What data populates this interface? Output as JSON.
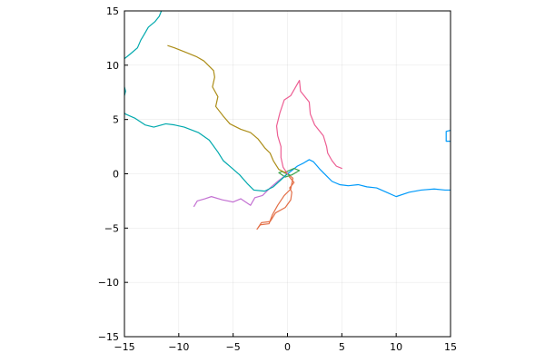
{
  "chart_data": {
    "type": "line",
    "title": "",
    "xlabel": "",
    "ylabel": "",
    "xlim": [
      -15,
      15
    ],
    "ylim": [
      -15,
      15
    ],
    "xticks": [
      -15,
      -10,
      -5,
      0,
      5,
      10,
      15
    ],
    "yticks": [
      -15,
      -10,
      -5,
      0,
      5,
      10,
      15
    ],
    "xtick_labels": [
      "−15",
      "−10",
      "−5",
      "0",
      "5",
      "10",
      "15"
    ],
    "ytick_labels": [
      "−15",
      "−10",
      "−5",
      "0",
      "5",
      "10",
      "15"
    ],
    "grid": true,
    "legend": "none",
    "aspect": "equal",
    "series": [
      {
        "color": "#009AFA",
        "x": [
          0,
          0.4,
          0.9,
          1.5,
          2.0,
          2.4,
          3.0,
          3.6,
          4.1,
          4.8,
          5.6,
          6.5,
          7.3,
          8.2,
          9.1,
          10.0,
          11.2,
          12.3,
          13.5,
          14.5,
          15.0
        ],
        "y": [
          0,
          0.3,
          0.7,
          1.0,
          1.3,
          1.1,
          0.4,
          -0.2,
          -0.7,
          -1.0,
          -1.1,
          -1.0,
          -1.2,
          -1.3,
          -1.7,
          -2.1,
          -1.7,
          -1.5,
          -1.4,
          -1.5,
          -1.5
        ]
      },
      {
        "color": "#009AFA",
        "x": [
          15.0,
          14.6,
          14.6,
          15.0
        ],
        "y": [
          4.0,
          3.9,
          3.0,
          3.0
        ]
      },
      {
        "color": "#E36F47",
        "x": [
          0,
          0.5,
          0.4,
          0.3,
          -0.3,
          -0.9,
          -1.4,
          -1.7,
          -2.5,
          -2.8,
          -2.4,
          -1.6,
          -1.1,
          -0.2,
          0.3,
          0.4,
          0.2,
          0.6,
          0.1
        ],
        "y": [
          0,
          -0.4,
          -0.9,
          -1.4,
          -2.0,
          -2.9,
          -3.8,
          -4.6,
          -4.7,
          -5.1,
          -4.5,
          -4.4,
          -3.6,
          -3.1,
          -2.4,
          -1.7,
          -1.3,
          -0.8,
          -0.2
        ]
      },
      {
        "color": "#3EA44E",
        "x": [
          0,
          -0.5,
          -0.8,
          -0.2,
          0.4,
          1.1,
          0.6,
          -0.3,
          0.2
        ],
        "y": [
          0,
          0.2,
          0.1,
          -0.3,
          -0.1,
          0.3,
          0.5,
          0.1,
          -0.1
        ]
      },
      {
        "color": "#C371D2",
        "x": [
          0,
          -0.9,
          -1.6,
          -2.3,
          -3.0,
          -3.4,
          -4.3,
          -5.0,
          -6.0,
          -7.0,
          -7.6,
          -8.3,
          -8.6
        ],
        "y": [
          0,
          -0.7,
          -1.3,
          -2.0,
          -2.2,
          -2.9,
          -2.3,
          -2.6,
          -2.4,
          -2.1,
          -2.3,
          -2.5,
          -3.0
        ]
      },
      {
        "color": "#AC8D18",
        "x": [
          0,
          -0.8,
          -1.3,
          -1.6,
          -2.1,
          -2.7,
          -3.4,
          -4.3,
          -5.3,
          -5.9,
          -6.6,
          -6.4,
          -6.9,
          -6.7,
          -6.8,
          -7.3,
          -7.7,
          -8.4,
          -9.4,
          -10.4,
          -11.0
        ],
        "y": [
          0,
          0.4,
          1.2,
          1.9,
          2.4,
          3.2,
          3.8,
          4.1,
          4.6,
          5.3,
          6.2,
          7.1,
          8.0,
          8.9,
          9.5,
          10.0,
          10.4,
          10.8,
          11.2,
          11.6,
          11.8
        ]
      },
      {
        "color": "#00A9AD",
        "x": [
          0,
          -1.3,
          -2.1,
          -3.1,
          -3.7,
          -4.4,
          -5.2,
          -5.9,
          -6.4,
          -7.2,
          -8.2,
          -9.5,
          -10.4,
          -11.2,
          -12.3,
          -13.1,
          -14.0,
          -14.9,
          -15.0
        ],
        "y": [
          0,
          -1.2,
          -1.6,
          -1.5,
          -0.9,
          -0.1,
          0.6,
          1.2,
          2.0,
          3.1,
          3.8,
          4.3,
          4.5,
          4.6,
          4.3,
          4.5,
          5.1,
          5.5,
          5.6
        ]
      },
      {
        "color": "#00A9AD",
        "x": [
          -15.0,
          -14.5,
          -13.8,
          -13.5,
          -13.2,
          -12.8,
          -12.2,
          -11.8,
          -11.6
        ],
        "y": [
          10.6,
          11.0,
          11.6,
          12.3,
          12.8,
          13.5,
          14.0,
          14.5,
          15.0
        ]
      },
      {
        "color": "#00A9AD",
        "x": [
          -15.0,
          -14.9,
          -15.0
        ],
        "y": [
          7.2,
          7.6,
          8.0
        ]
      },
      {
        "color": "#ED5E93",
        "x": [
          0,
          -0.4,
          -0.6,
          -0.6,
          -0.9,
          -1.0,
          -0.7,
          -0.3,
          0.3,
          1.1,
          1.2,
          2.0,
          2.1,
          2.5,
          3.3,
          3.6,
          3.7,
          4.1,
          4.5,
          5.0
        ],
        "y": [
          0,
          0.6,
          1.5,
          2.5,
          3.5,
          4.4,
          5.6,
          6.8,
          7.2,
          8.6,
          7.6,
          6.6,
          5.5,
          4.5,
          3.5,
          2.5,
          1.9,
          1.2,
          0.7,
          0.5
        ]
      }
    ]
  }
}
